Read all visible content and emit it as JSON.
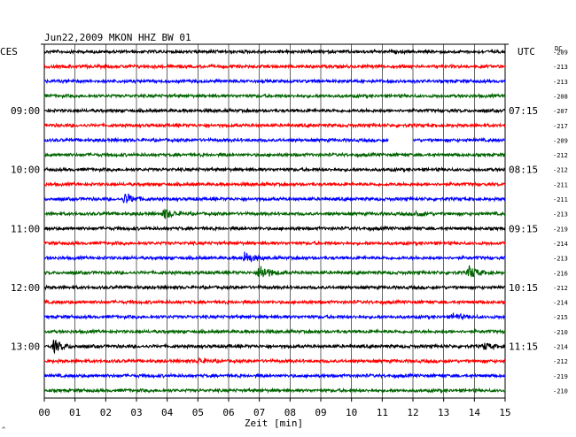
{
  "chart_data": {
    "type": "line",
    "title": "Jun22,2009  MKON HHZ BW 01",
    "left_corner_label": "CES",
    "right_corner_label": "UTC",
    "dc_label": "DC",
    "xlabel": "Zeit [min]",
    "footer_mark": "^",
    "x_ticks": [
      "00",
      "01",
      "02",
      "03",
      "04",
      "05",
      "06",
      "07",
      "08",
      "09",
      "10",
      "11",
      "12",
      "13",
      "14",
      "15"
    ],
    "xlim": [
      0,
      15
    ],
    "grid": true,
    "trace_colors": [
      "#000000",
      "#ff0000",
      "#0000ff",
      "#006400"
    ],
    "left_time_labels": [
      {
        "row": 4,
        "label": "09:00"
      },
      {
        "row": 8,
        "label": "10:00"
      },
      {
        "row": 12,
        "label": "11:00"
      },
      {
        "row": 16,
        "label": "12:00"
      },
      {
        "row": 20,
        "label": "13:00"
      }
    ],
    "right_time_labels": [
      {
        "row": 4,
        "label": "07:15"
      },
      {
        "row": 8,
        "label": "08:15"
      },
      {
        "row": 12,
        "label": "09:15"
      },
      {
        "row": 16,
        "label": "10:15"
      },
      {
        "row": 20,
        "label": "11:15"
      }
    ],
    "dc_values": [
      -209,
      -213,
      -213,
      -208,
      -207,
      -217,
      -209,
      -212,
      -212,
      -211,
      -211,
      -213,
      -219,
      -214,
      -213,
      -216,
      -212,
      -214,
      -215,
      -210,
      -214,
      -212,
      -219,
      -210
    ],
    "events": [
      {
        "row": 10,
        "minute": 2.6,
        "amp": 7
      },
      {
        "row": 11,
        "minute": 3.9,
        "amp": 6
      },
      {
        "row": 11,
        "minute": 12.1,
        "amp": 3
      },
      {
        "row": 14,
        "minute": 6.5,
        "amp": 7
      },
      {
        "row": 15,
        "minute": 7.0,
        "amp": 10
      },
      {
        "row": 15,
        "minute": 13.8,
        "amp": 8
      },
      {
        "row": 18,
        "minute": 13.3,
        "amp": 4
      },
      {
        "row": 20,
        "minute": 0.3,
        "amp": 7
      },
      {
        "row": 20,
        "minute": 14.3,
        "amp": 4
      },
      {
        "row": 21,
        "minute": 5.0,
        "amp": 3
      }
    ],
    "data_gaps": [
      {
        "row": 6,
        "start_minute": 11.2,
        "end_minute": 12.0
      }
    ]
  }
}
